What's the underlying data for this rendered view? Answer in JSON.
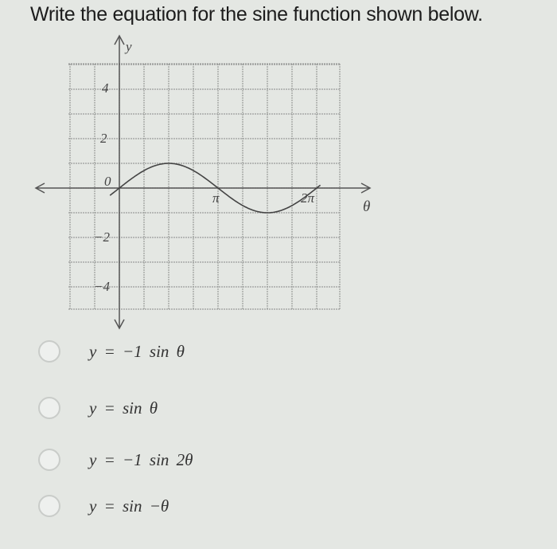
{
  "question": "Write the equation for the sine function shown below.",
  "graph": {
    "y_axis_label": "y",
    "x_axis_label": "θ",
    "y_tick_labels": [
      "4",
      "2",
      "0",
      "−2",
      "−4"
    ],
    "x_tick_labels": [
      "π",
      "2π"
    ]
  },
  "options": [
    "y = −1 sin θ",
    "y = sin θ",
    "y = −1 sin 2θ",
    "y = sin −θ"
  ]
}
